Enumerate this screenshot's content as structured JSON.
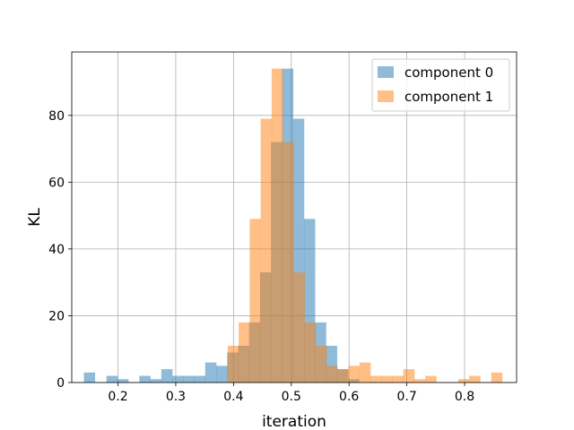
{
  "chart_data": {
    "type": "histogram",
    "xlabel": "iteration",
    "ylabel": "KL",
    "xlim": [
      0.12,
      0.89
    ],
    "ylim": [
      0,
      99
    ],
    "xticks": [
      0.2,
      0.3,
      0.4,
      0.5,
      0.6,
      0.7,
      0.8
    ],
    "xtick_labels": [
      "0.2",
      "0.3",
      "0.4",
      "0.5",
      "0.6",
      "0.7",
      "0.8"
    ],
    "yticks": [
      0,
      20,
      40,
      60,
      80
    ],
    "ytick_labels": [
      "0",
      "20",
      "40",
      "60",
      "80"
    ],
    "grid": true,
    "legend_position": "top-right",
    "bin_width": 0.019,
    "series": [
      {
        "name": "component 0",
        "color": "#1f77b4",
        "alpha": 0.5,
        "bin_starts": [
          0.141,
          0.18,
          0.199,
          0.237,
          0.256,
          0.275,
          0.294,
          0.313,
          0.332,
          0.351,
          0.37,
          0.389,
          0.408,
          0.427,
          0.446,
          0.465,
          0.484,
          0.503,
          0.522,
          0.541,
          0.56,
          0.579,
          0.598
        ],
        "counts": [
          3,
          2,
          1,
          2,
          1,
          4,
          2,
          2,
          2,
          6,
          5,
          9,
          11,
          18,
          33,
          72,
          94,
          79,
          49,
          18,
          11,
          4,
          1
        ]
      },
      {
        "name": "component 1",
        "color": "#ff7f0e",
        "alpha": 0.5,
        "bin_starts": [
          0.39,
          0.409,
          0.428,
          0.447,
          0.466,
          0.485,
          0.504,
          0.523,
          0.542,
          0.561,
          0.58,
          0.599,
          0.618,
          0.637,
          0.656,
          0.675,
          0.694,
          0.713,
          0.732,
          0.751,
          0.77,
          0.789,
          0.808,
          0.827,
          0.846
        ],
        "counts": [
          11,
          18,
          49,
          79,
          94,
          72,
          33,
          18,
          11,
          5,
          4,
          5,
          6,
          2,
          2,
          2,
          4,
          1,
          2,
          0,
          0,
          1,
          2,
          0,
          3
        ]
      }
    ]
  }
}
